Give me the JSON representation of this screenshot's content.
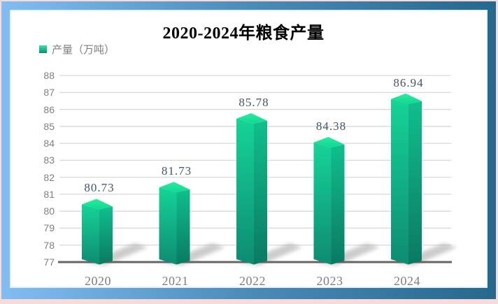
{
  "window": {
    "outer_border_color": "#f6dbda",
    "frame_gradient": [
      "#82bdf2",
      "#4a8cb8",
      "#25688d"
    ],
    "panel_background": "#ffffff",
    "panel_border_color": "#e3f1fc"
  },
  "chart": {
    "title": "2020-2024年粮食产量",
    "legend": {
      "label": "产量（万吨）"
    }
  },
  "chart_data": {
    "type": "bar",
    "bar_style": "3d",
    "title": "2020-2024年粮食产量",
    "series_name": "产量（万吨）",
    "categories": [
      "2020",
      "2021",
      "2022",
      "2023",
      "2024"
    ],
    "values": [
      80.73,
      81.73,
      85.78,
      84.38,
      86.94
    ],
    "data_labels": [
      "80.73",
      "81.73",
      "85.78",
      "84.38",
      "86.94"
    ],
    "xlabel": "",
    "ylabel": "",
    "ylim": [
      77,
      88
    ],
    "ytick_step": 1,
    "yticks": [
      77,
      78,
      79,
      80,
      81,
      82,
      83,
      84,
      85,
      86,
      87,
      88
    ],
    "grid": true,
    "legend_position": "top-left",
    "colors": {
      "bar_top": [
        "#2beba4",
        "#0ed98e"
      ],
      "bar_front": [
        "#15d497",
        "#0e8b73"
      ],
      "bar_side": [
        "#0fbf8c",
        "#0a7a62"
      ],
      "gridline": "#d9d9d9",
      "axis_line": "#646464",
      "shadow": "#8f8f8f",
      "tick_label": "#7f7f7f",
      "data_label": "#44546a",
      "title_color": "#000000"
    }
  }
}
